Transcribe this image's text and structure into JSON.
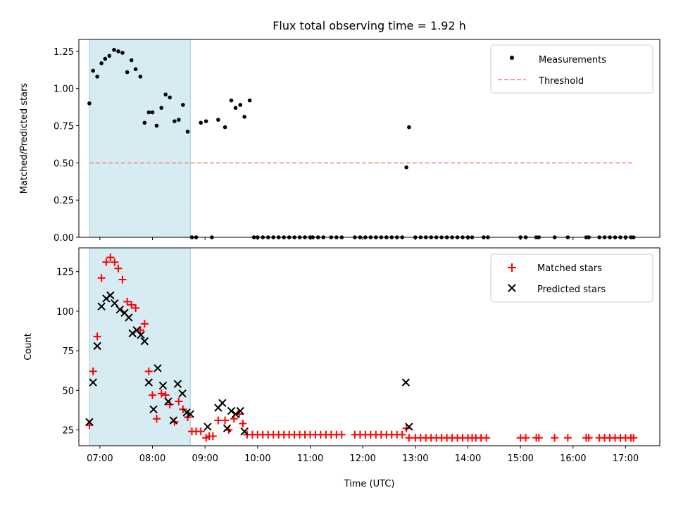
{
  "chart_data": [
    {
      "type": "scatter",
      "title": "Flux total observing time = 1.92 h",
      "xlabel": "",
      "ylabel": "Matched/Predicted stars",
      "xlim": [
        6.6,
        17.65
      ],
      "ylim": [
        0,
        1.33
      ],
      "yticks": [
        0.0,
        0.25,
        0.5,
        0.75,
        1.0,
        1.25
      ],
      "ytick_labels": [
        "0.00",
        "0.25",
        "0.50",
        "0.75",
        "1.00",
        "1.25"
      ],
      "shaded_span": [
        6.8,
        8.72
      ],
      "shade_color": "#add8e6",
      "threshold": {
        "name": "Threshold",
        "value": 0.5,
        "x_range": [
          6.8,
          17.15
        ],
        "color": "#ff7f7f"
      },
      "legend": {
        "location": "upper right",
        "entries": [
          "Measurements",
          "Threshold"
        ]
      },
      "series": [
        {
          "name": "Measurements",
          "marker": "dot",
          "color": "#000000",
          "x": [
            6.8,
            6.87,
            6.95,
            7.03,
            7.1,
            7.18,
            7.27,
            7.35,
            7.43,
            7.52,
            7.6,
            7.68,
            7.77,
            7.85,
            7.93,
            8.0,
            8.08,
            8.17,
            8.25,
            8.33,
            8.42,
            8.5,
            8.58,
            8.67,
            8.75,
            8.83,
            8.92,
            9.02,
            9.13,
            9.25,
            9.38,
            9.5,
            9.58,
            9.67,
            9.75,
            9.85,
            9.93,
            10.0,
            10.1,
            10.2,
            10.3,
            10.4,
            10.5,
            10.6,
            10.7,
            10.8,
            10.9,
            11.0,
            11.05,
            11.15,
            11.25,
            11.4,
            11.5,
            11.6,
            11.85,
            11.95,
            12.05,
            12.15,
            12.25,
            12.35,
            12.45,
            12.55,
            12.65,
            12.75,
            12.83,
            12.88,
            13.0,
            13.1,
            13.2,
            13.3,
            13.4,
            13.5,
            13.6,
            13.7,
            13.8,
            13.9,
            14.0,
            14.08,
            14.3,
            14.38,
            15.0,
            15.1,
            15.3,
            15.35,
            15.65,
            15.9,
            16.25,
            16.3,
            16.5,
            16.6,
            16.7,
            16.8,
            16.9,
            17.0,
            17.1,
            17.15
          ],
          "y": [
            0.9,
            1.12,
            1.08,
            1.17,
            1.2,
            1.22,
            1.26,
            1.25,
            1.24,
            1.11,
            1.19,
            1.13,
            1.08,
            0.77,
            0.84,
            0.84,
            0.75,
            0.87,
            0.96,
            0.94,
            0.78,
            0.79,
            0.89,
            0.71,
            0.0,
            0.0,
            0.77,
            0.78,
            0.0,
            0.79,
            0.74,
            0.92,
            0.87,
            0.89,
            0.81,
            0.92,
            0.0,
            0.0,
            0.0,
            0.0,
            0.0,
            0.0,
            0.0,
            0.0,
            0.0,
            0.0,
            0.0,
            0.0,
            0.0,
            0.0,
            0.0,
            0.0,
            0.0,
            0.0,
            0.0,
            0.0,
            0.0,
            0.0,
            0.0,
            0.0,
            0.0,
            0.0,
            0.0,
            0.0,
            0.47,
            0.74,
            0.0,
            0.0,
            0.0,
            0.0,
            0.0,
            0.0,
            0.0,
            0.0,
            0.0,
            0.0,
            0.0,
            0.0,
            0.0,
            0.0,
            0.0,
            0.0,
            0.0,
            0.0,
            0.0,
            0.0,
            0.0,
            0.0,
            0.0,
            0.0,
            0.0,
            0.0,
            0.0,
            0.0,
            0.0,
            0.0
          ]
        }
      ]
    },
    {
      "type": "scatter",
      "title": "",
      "xlabel": "Time (UTC)",
      "ylabel": "Count",
      "xlim": [
        6.6,
        17.65
      ],
      "ylim": [
        15,
        140
      ],
      "yticks": [
        25,
        50,
        75,
        100,
        125
      ],
      "ytick_labels": [
        "25",
        "50",
        "75",
        "100",
        "125"
      ],
      "xticks": [
        7,
        8,
        9,
        10,
        11,
        12,
        13,
        14,
        15,
        16,
        17
      ],
      "xtick_labels": [
        "07:00",
        "08:00",
        "09:00",
        "10:00",
        "11:00",
        "12:00",
        "13:00",
        "14:00",
        "15:00",
        "16:00",
        "17:00"
      ],
      "shaded_span": [
        6.8,
        8.72
      ],
      "shade_color": "#add8e6",
      "legend": {
        "location": "upper right",
        "entries": [
          "Matched stars",
          "Predicted stars"
        ]
      },
      "series": [
        {
          "name": "Matched stars",
          "marker": "plus",
          "color": "#ff0000",
          "x": [
            6.8,
            6.87,
            6.95,
            7.03,
            7.12,
            7.2,
            7.28,
            7.35,
            7.43,
            7.52,
            7.6,
            7.68,
            7.77,
            7.85,
            7.93,
            8.0,
            8.08,
            8.17,
            8.25,
            8.33,
            8.42,
            8.5,
            8.58,
            8.67,
            8.75,
            8.83,
            8.92,
            9.02,
            9.08,
            9.15,
            9.25,
            9.38,
            9.45,
            9.55,
            9.65,
            9.72,
            9.8,
            9.9,
            10.0,
            10.1,
            10.2,
            10.3,
            10.4,
            10.5,
            10.6,
            10.7,
            10.8,
            10.9,
            11.0,
            11.1,
            11.2,
            11.3,
            11.4,
            11.5,
            11.6,
            11.85,
            11.95,
            12.05,
            12.15,
            12.25,
            12.35,
            12.45,
            12.55,
            12.65,
            12.75,
            12.83,
            12.88,
            13.0,
            13.1,
            13.2,
            13.3,
            13.4,
            13.5,
            13.6,
            13.7,
            13.8,
            13.9,
            14.0,
            14.08,
            14.15,
            14.25,
            14.35,
            15.0,
            15.1,
            15.3,
            15.35,
            15.65,
            15.9,
            16.25,
            16.3,
            16.5,
            16.6,
            16.7,
            16.8,
            16.9,
            17.0,
            17.1,
            17.15
          ],
          "y": [
            28,
            62,
            84,
            121,
            131,
            134,
            131,
            127,
            120,
            106,
            104,
            102,
            88,
            92,
            62,
            47,
            32,
            48,
            47,
            41,
            30,
            43,
            38,
            33,
            24,
            24,
            24,
            20,
            21,
            21,
            31,
            31,
            25,
            32,
            35,
            29,
            22,
            22,
            22,
            22,
            22,
            22,
            22,
            22,
            22,
            22,
            22,
            22,
            22,
            22,
            22,
            22,
            22,
            22,
            22,
            22,
            22,
            22,
            22,
            22,
            22,
            22,
            22,
            22,
            22,
            26,
            20,
            20,
            20,
            20,
            20,
            20,
            20,
            20,
            20,
            20,
            20,
            20,
            20,
            20,
            20,
            20,
            20,
            20,
            20,
            20,
            20,
            20,
            20,
            20,
            20,
            20,
            20,
            20,
            20,
            20,
            20,
            20
          ]
        },
        {
          "name": "Predicted stars",
          "marker": "x",
          "color": "#000000",
          "x": [
            6.8,
            6.87,
            6.95,
            7.03,
            7.12,
            7.2,
            7.28,
            7.38,
            7.47,
            7.55,
            7.62,
            7.7,
            7.78,
            7.85,
            7.93,
            8.02,
            8.1,
            8.2,
            8.3,
            8.4,
            8.48,
            8.57,
            8.65,
            8.72,
            9.05,
            9.25,
            9.33,
            9.42,
            9.5,
            9.58,
            9.67,
            9.75,
            12.82,
            12.88
          ],
          "y": [
            30,
            55,
            78,
            103,
            108,
            110,
            105,
            101,
            99,
            96,
            86,
            88,
            85,
            81,
            55,
            38,
            64,
            53,
            43,
            31,
            54,
            48,
            36,
            35,
            27,
            39,
            42,
            26,
            37,
            35,
            37,
            24,
            55,
            27
          ]
        }
      ]
    }
  ]
}
